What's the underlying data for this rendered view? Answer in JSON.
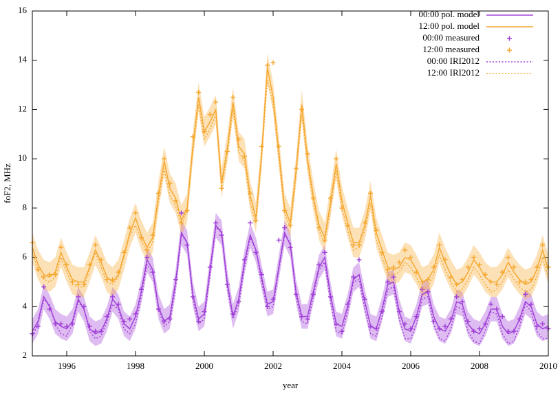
{
  "chart_data": {
    "type": "line",
    "xlabel": "year",
    "ylabel": "foF2, MHz",
    "xlim": [
      1995,
      2010
    ],
    "ylim": [
      2,
      16
    ],
    "xticks": [
      1996,
      1998,
      2000,
      2002,
      2004,
      2006,
      2008,
      2010
    ],
    "yticks": [
      2,
      4,
      6,
      8,
      10,
      12,
      14,
      16
    ],
    "legend": "top-right",
    "x": [
      1995,
      1995.167,
      1995.333,
      1995.5,
      1995.667,
      1995.833,
      1996,
      1996.167,
      1996.333,
      1996.5,
      1996.667,
      1996.833,
      1997,
      1997.167,
      1997.333,
      1997.5,
      1997.667,
      1997.833,
      1998,
      1998.167,
      1998.333,
      1998.5,
      1998.667,
      1998.833,
      1999,
      1999.167,
      1999.333,
      1999.5,
      1999.667,
      1999.833,
      2000,
      2000.167,
      2000.333,
      2000.5,
      2000.667,
      2000.833,
      2001,
      2001.167,
      2001.333,
      2001.5,
      2001.667,
      2001.833,
      2002,
      2002.167,
      2002.333,
      2002.5,
      2002.667,
      2002.833,
      2003,
      2003.167,
      2003.333,
      2003.5,
      2003.667,
      2003.833,
      2004,
      2004.167,
      2004.333,
      2004.5,
      2004.667,
      2004.833,
      2005,
      2005.167,
      2005.333,
      2005.5,
      2005.667,
      2005.833,
      2006,
      2006.167,
      2006.333,
      2006.5,
      2006.667,
      2006.833,
      2007,
      2007.167,
      2007.333,
      2007.5,
      2007.667,
      2007.833,
      2008,
      2008.167,
      2008.333,
      2008.5,
      2008.667,
      2008.833,
      2009,
      2009.167,
      2009.333,
      2009.5,
      2009.667,
      2009.833,
      2010
    ],
    "series": [
      {
        "name": "00:00 pol. model",
        "color": "#a040d8",
        "style": "line",
        "band": 0.5,
        "values": [
          3.0,
          3.4,
          4.4,
          4.0,
          3.4,
          3.2,
          3.1,
          3.4,
          4.3,
          3.9,
          3.1,
          2.9,
          3.0,
          3.5,
          4.3,
          4.0,
          3.3,
          3.1,
          3.6,
          4.6,
          5.9,
          5.5,
          4.0,
          3.4,
          3.6,
          5.0,
          7.0,
          6.6,
          4.5,
          3.5,
          3.7,
          5.5,
          7.3,
          7.0,
          5.0,
          3.6,
          4.3,
          5.8,
          6.9,
          6.3,
          5.2,
          4.1,
          4.2,
          5.6,
          7.0,
          6.5,
          4.6,
          3.6,
          3.6,
          4.6,
          5.6,
          6.0,
          4.5,
          3.3,
          3.2,
          4.0,
          5.1,
          5.3,
          4.2,
          3.2,
          3.1,
          3.9,
          4.9,
          5.0,
          3.8,
          3.1,
          3.0,
          3.6,
          4.5,
          4.6,
          3.6,
          3.1,
          3.0,
          3.4,
          4.2,
          4.1,
          3.3,
          3.0,
          2.9,
          3.3,
          3.9,
          3.9,
          3.2,
          2.9,
          3.0,
          3.5,
          4.2,
          4.0,
          3.3,
          3.1,
          3.2
        ]
      },
      {
        "name": "12:00 pol. model",
        "color": "#f5a830",
        "style": "line",
        "band": 0.6,
        "values": [
          6.4,
          5.7,
          5.3,
          5.2,
          5.4,
          6.2,
          5.6,
          5.1,
          5.0,
          5.0,
          5.6,
          6.3,
          5.8,
          5.2,
          5.0,
          5.3,
          6.1,
          7.0,
          7.6,
          6.9,
          6.4,
          6.8,
          8.5,
          9.9,
          8.8,
          8.4,
          7.5,
          8.0,
          10.5,
          12.5,
          11.1,
          11.5,
          12.0,
          9.0,
          10.4,
          12.3,
          10.5,
          10.2,
          8.5,
          7.6,
          10.2,
          13.7,
          12.5,
          10.3,
          8.0,
          7.4,
          9.5,
          12.2,
          10.0,
          8.5,
          7.3,
          6.8,
          8.2,
          9.8,
          8.3,
          7.4,
          6.6,
          6.6,
          7.3,
          8.5,
          7.0,
          6.3,
          5.6,
          5.5,
          5.6,
          6.0,
          5.9,
          5.5,
          5.0,
          5.1,
          5.5,
          6.4,
          5.8,
          5.3,
          4.9,
          5.0,
          5.4,
          5.9,
          5.6,
          5.2,
          5.0,
          5.0,
          5.3,
          5.8,
          5.4,
          5.1,
          4.9,
          5.0,
          5.5,
          6.3,
          5.5
        ]
      },
      {
        "name": "00:00 measured",
        "color": "#a040d8",
        "style": "points",
        "values": [
          2.9,
          3.2,
          4.8,
          3.9,
          3.3,
          3.3,
          3.2,
          3.3,
          4.4,
          4.0,
          3.2,
          3.0,
          3.0,
          3.6,
          4.4,
          4.1,
          3.4,
          3.5,
          3.7,
          4.7,
          6.0,
          5.4,
          3.9,
          3.4,
          3.5,
          5.1,
          7.8,
          6.5,
          4.4,
          3.4,
          3.8,
          5.6,
          7.4,
          6.9,
          4.9,
          3.7,
          4.2,
          5.9,
          7.4,
          6.2,
          5.3,
          4.0,
          4.3,
          6.7,
          7.2,
          6.4,
          4.5,
          3.6,
          3.5,
          4.5,
          5.7,
          6.2,
          4.4,
          3.3,
          3.0,
          4.1,
          5.2,
          5.9,
          4.3,
          3.2,
          3.1,
          3.8,
          5.0,
          5.2,
          3.8,
          3.3,
          3.1,
          3.6,
          4.7,
          4.6,
          3.4,
          3.1,
          3.2,
          3.5,
          4.4,
          4.2,
          3.4,
          3.0,
          3.1,
          3.3,
          4.1,
          3.9,
          3.6,
          3.0,
          3.0,
          3.5,
          4.5,
          4.1,
          3.2,
          3.3,
          3.1
        ]
      },
      {
        "name": "12:00 measured",
        "color": "#f5a830",
        "style": "points",
        "values": [
          6.6,
          5.5,
          5.2,
          5.3,
          5.3,
          6.4,
          5.7,
          5.0,
          4.9,
          4.9,
          5.7,
          6.5,
          5.9,
          5.1,
          5.1,
          5.4,
          6.2,
          7.2,
          7.8,
          6.8,
          6.3,
          6.9,
          8.6,
          10.0,
          9.0,
          8.3,
          7.4,
          7.9,
          10.9,
          12.7,
          11.1,
          11.8,
          12.3,
          8.8,
          10.3,
          12.5,
          10.8,
          10.1,
          8.6,
          7.5,
          10.5,
          13.8,
          13.9,
          10.5,
          7.9,
          7.3,
          9.6,
          12.0,
          10.2,
          8.4,
          7.2,
          6.7,
          8.4,
          10.0,
          8.0,
          7.3,
          6.5,
          6.5,
          7.4,
          8.6,
          7.1,
          6.2,
          5.5,
          5.6,
          5.8,
          6.3,
          6.0,
          5.4,
          5.0,
          5.1,
          5.6,
          6.5,
          5.9,
          5.2,
          4.9,
          5.1,
          5.6,
          6.0,
          5.7,
          5.3,
          5.0,
          4.9,
          5.4,
          6.0,
          5.6,
          5.0,
          5.0,
          5.1,
          5.6,
          6.5,
          5.6
        ]
      },
      {
        "name": "00:00 IRI2012",
        "color": "#a040d8",
        "style": "dotted",
        "values": [
          2.8,
          3.3,
          4.3,
          4.1,
          3.3,
          2.9,
          2.8,
          3.3,
          4.2,
          3.9,
          3.0,
          2.7,
          2.8,
          3.4,
          4.1,
          3.9,
          3.1,
          2.9,
          3.3,
          4.4,
          5.7,
          5.4,
          3.9,
          3.2,
          3.4,
          4.8,
          6.9,
          6.6,
          4.3,
          3.3,
          3.5,
          5.3,
          7.2,
          7.1,
          4.8,
          3.5,
          4.1,
          5.6,
          6.8,
          6.3,
          5.0,
          3.9,
          4.0,
          5.5,
          6.9,
          6.6,
          4.4,
          3.4,
          3.3,
          4.4,
          5.5,
          5.8,
          4.2,
          3.0,
          2.9,
          3.8,
          5.0,
          5.1,
          3.9,
          2.9,
          2.8,
          3.6,
          4.7,
          4.8,
          3.5,
          2.7,
          2.7,
          3.3,
          4.3,
          4.4,
          3.3,
          2.7,
          2.6,
          3.1,
          4.0,
          3.9,
          3.0,
          2.6,
          2.5,
          3.0,
          3.8,
          3.7,
          2.9,
          2.5,
          2.6,
          3.2,
          4.1,
          3.8,
          3.0,
          2.7,
          2.7
        ]
      },
      {
        "name": "12:00 IRI2012",
        "color": "#f5a830",
        "style": "dotted",
        "values": [
          6.2,
          5.5,
          5.1,
          5.0,
          5.2,
          6.0,
          5.4,
          4.9,
          4.8,
          4.8,
          5.5,
          6.2,
          5.6,
          5.0,
          4.9,
          5.2,
          6.0,
          6.9,
          7.3,
          6.7,
          6.2,
          6.6,
          8.3,
          9.6,
          8.5,
          8.1,
          7.3,
          7.9,
          10.3,
          12.2,
          10.8,
          11.2,
          11.8,
          8.8,
          10.2,
          12.0,
          10.3,
          9.9,
          8.2,
          7.4,
          10.0,
          13.2,
          12.2,
          10.0,
          7.8,
          7.2,
          9.3,
          11.8,
          9.8,
          8.3,
          7.1,
          6.6,
          8.0,
          9.5,
          8.0,
          7.1,
          6.3,
          6.4,
          7.1,
          8.2,
          6.7,
          6.0,
          5.3,
          5.3,
          5.4,
          5.8,
          5.6,
          5.2,
          4.7,
          4.8,
          5.3,
          6.1,
          5.5,
          5.0,
          4.6,
          4.7,
          5.1,
          5.6,
          5.3,
          4.9,
          4.6,
          4.7,
          5.0,
          5.5,
          5.1,
          4.8,
          4.6,
          4.7,
          5.2,
          6.0,
          5.2
        ]
      }
    ]
  }
}
